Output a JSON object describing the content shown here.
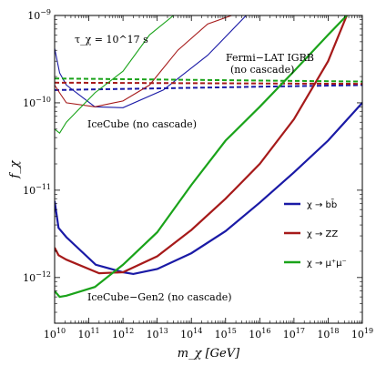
{
  "chart_data": {
    "type": "line",
    "xlabel": "m_χ [GeV]",
    "ylabel": "f_χ",
    "xscale": "log",
    "yscale": "log",
    "xlim": [
      10000000000.0,
      1e+19
    ],
    "ylim": [
      3e-13,
      1e-09
    ],
    "x_ticks": [
      {
        "value": 10000000000.0,
        "label": "10^10"
      },
      {
        "value": 100000000000.0,
        "label": "10^11"
      },
      {
        "value": 1000000000000.0,
        "label": "10^12"
      },
      {
        "value": 10000000000000.0,
        "label": "10^13"
      },
      {
        "value": 100000000000000.0,
        "label": "10^14"
      },
      {
        "value": 1000000000000000.0,
        "label": "10^15"
      },
      {
        "value": 1e+16,
        "label": "10^16"
      },
      {
        "value": 1e+17,
        "label": "10^17"
      },
      {
        "value": 1e+18,
        "label": "10^18"
      },
      {
        "value": 1e+19,
        "label": "10^19"
      }
    ],
    "y_ticks": [
      {
        "value": 1e-12,
        "label": "10^-12"
      },
      {
        "value": 1e-11,
        "label": "10^-11"
      },
      {
        "value": 1e-10,
        "label": "10^-10"
      },
      {
        "value": 1e-09,
        "label": "10^-9"
      }
    ],
    "annotations": {
      "lifetime": "τ_χ = 10^17 s",
      "fermi": "Fermi−LAT IGRB",
      "fermi_sub": "(no cascade)",
      "icecube": "IceCube (no cascade)",
      "gen2": "IceCube−Gen2 (no cascade)"
    },
    "grid": false,
    "legend_position": "right",
    "series": [
      {
        "name": "χ → bb̄",
        "color": "#1a1aa6",
        "icecube": {
          "x": [
            10000000000.0,
            14000000000.0,
            22000000000.0,
            150000000000.0,
            1000000000000.0,
            15000000000000.0,
            300000000000000.0,
            4000000000000000.0
          ],
          "y": [
            4.2e-10,
            2.2e-10,
            1.6e-10,
            9e-11,
            8.8e-11,
            1.4e-10,
            3.5e-10,
            1e-09
          ]
        },
        "gen2": {
          "x": [
            10000000000.0,
            13000000000.0,
            22000000000.0,
            160000000000.0,
            1000000000000.0,
            2000000000000.0,
            10000000000000.0,
            100000000000000.0,
            1000000000000000.0,
            1e+16,
            1e+17,
            1e+18,
            1e+19
          ],
          "y": [
            7.5e-12,
            3.7e-12,
            2.9e-12,
            1.4e-12,
            1.15e-12,
            1.1e-12,
            1.25e-12,
            1.9e-12,
            3.4e-12,
            7.2e-12,
            1.6e-11,
            3.7e-11,
            1e-10
          ]
        },
        "fermi": {
          "x": [
            10000000000.0,
            1e+19
          ],
          "y": [
            1.4e-10,
            1.6e-10
          ]
        }
      },
      {
        "name": "χ → ZZ",
        "color": "#a61a1a",
        "icecube": {
          "x": [
            10000000000.0,
            14000000000.0,
            22000000000.0,
            150000000000.0,
            1000000000000.0,
            6000000000000.0,
            40000000000000.0,
            300000000000000.0,
            1500000000000000.0
          ],
          "y": [
            1.6e-10,
            1.3e-10,
            1e-10,
            9e-11,
            1.05e-10,
            1.6e-10,
            4e-10,
            8e-10,
            1e-09
          ]
        },
        "gen2": {
          "x": [
            10000000000.0,
            13000000000.0,
            22000000000.0,
            200000000000.0,
            1000000000000.0,
            10000000000000.0,
            100000000000000.0,
            1000000000000000.0,
            1e+16,
            1e+17,
            1e+18,
            3.5e+18
          ],
          "y": [
            2.2e-12,
            1.8e-12,
            1.6e-12,
            1.12e-12,
            1.15e-12,
            1.75e-12,
            3.5e-12,
            8e-12,
            2e-11,
            6.5e-11,
            3e-10,
            1e-09
          ]
        },
        "fermi": {
          "x": [
            10000000000.0,
            1e+19
          ],
          "y": [
            1.7e-10,
            1.65e-10
          ]
        }
      },
      {
        "name": "χ → μ⁺μ⁻",
        "color": "#1aa31a",
        "icecube": {
          "x": [
            10000000000.0,
            14000000000.0,
            22000000000.0,
            150000000000.0,
            1000000000000.0,
            6000000000000.0,
            30000000000000.0
          ],
          "y": [
            5e-11,
            4.5e-11,
            6e-11,
            1.3e-10,
            2.3e-10,
            6e-10,
            1e-09
          ]
        },
        "gen2": {
          "x": [
            10000000000.0,
            14000000000.0,
            22000000000.0,
            150000000000.0,
            1000000000000.0,
            10000000000000.0,
            100000000000000.0,
            1000000000000000.0,
            1e+16,
            1e+17,
            1e+18,
            3.5e+18
          ],
          "y": [
            7e-13,
            6e-13,
            6.2e-13,
            7.8e-13,
            1.4e-12,
            3.3e-12,
            1.15e-11,
            3.7e-11,
            9e-11,
            2.3e-10,
            6e-10,
            1e-09
          ]
        },
        "fermi": {
          "x": [
            10000000000.0,
            1e+19
          ],
          "y": [
            1.9e-10,
            1.75e-10
          ]
        }
      }
    ]
  }
}
